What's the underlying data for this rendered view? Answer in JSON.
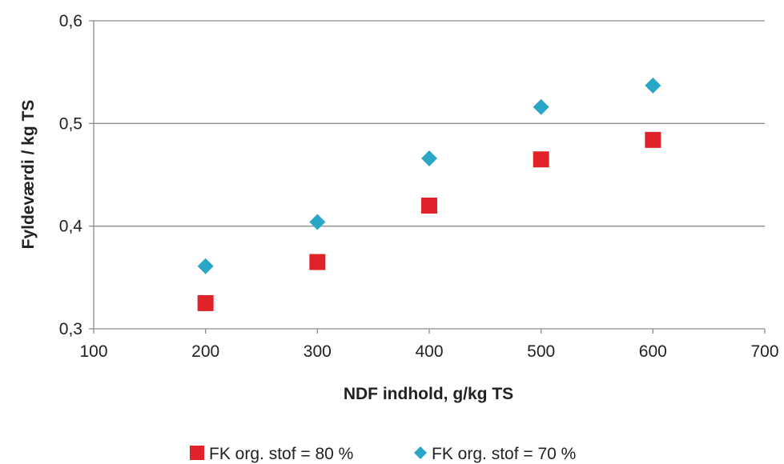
{
  "chart_data": {
    "type": "scatter",
    "xlabel": "NDF indhold, g/kg TS",
    "ylabel": "Fyldeværdi / kg TS",
    "xlim": [
      100,
      700
    ],
    "ylim": [
      0.3,
      0.6
    ],
    "xticks": [
      100,
      200,
      300,
      400,
      500,
      600,
      700
    ],
    "yticks": [
      0.3,
      0.4,
      0.5,
      0.6
    ],
    "xtick_labels": [
      "100",
      "200",
      "300",
      "400",
      "500",
      "600",
      "700"
    ],
    "ytick_labels": [
      "0,3",
      "0,4",
      "0,5",
      "0,6"
    ],
    "grid": "horizontal",
    "legend_position": "bottom",
    "series": [
      {
        "name": "FK org. stof = 80 %",
        "marker": "square",
        "color": "#e0232b",
        "x": [
          200,
          300,
          400,
          500,
          600
        ],
        "y": [
          0.325,
          0.365,
          0.42,
          0.465,
          0.484
        ]
      },
      {
        "name": "FK org. stof = 70 %",
        "marker": "diamond",
        "color": "#2aa6c6",
        "x": [
          200,
          300,
          400,
          500,
          600
        ],
        "y": [
          0.361,
          0.404,
          0.466,
          0.516,
          0.537
        ]
      }
    ]
  }
}
